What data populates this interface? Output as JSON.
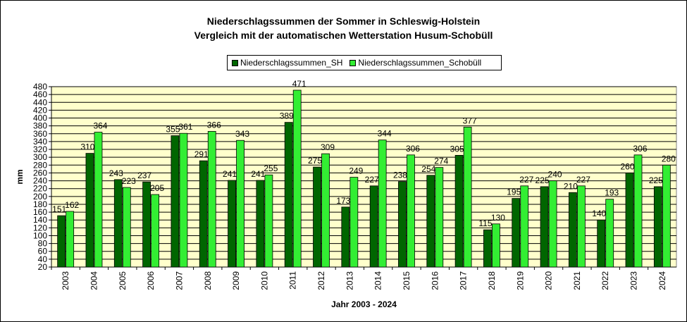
{
  "chart_data": {
    "type": "bar",
    "title": "Niederschlagssummen der Sommer in Schleswig-Holstein",
    "subtitle": "Vergleich mit der automatischen Wetterstation Husum-Schobüll",
    "xlabel": "Jahr 2003 - 2024",
    "ylabel": "mm",
    "ylim": [
      20,
      480
    ],
    "yticks": [
      20,
      40,
      60,
      80,
      100,
      120,
      140,
      160,
      180,
      200,
      220,
      240,
      260,
      280,
      300,
      320,
      340,
      360,
      380,
      400,
      420,
      440,
      460,
      480
    ],
    "grid": true,
    "legend_position": "top",
    "categories": [
      "2003",
      "2004",
      "2005",
      "2006",
      "2007",
      "2008",
      "2009",
      "2010",
      "2011",
      "2012",
      "2013",
      "2014",
      "2015",
      "2016",
      "2017",
      "2018",
      "2019",
      "2020",
      "2021",
      "2022",
      "2023",
      "2024"
    ],
    "series": [
      {
        "name": "Niederschlagssummen_SH",
        "color": "#006600",
        "values": [
          151,
          310,
          243,
          237,
          355,
          291,
          241,
          241,
          389,
          275,
          173,
          227,
          238,
          254,
          305,
          115,
          195,
          225,
          210,
          140,
          260,
          225
        ]
      },
      {
        "name": "Niederschlagssummen_Schobüll",
        "color": "#33ee33",
        "values": [
          162,
          364,
          223,
          205,
          361,
          366,
          343,
          255,
          471,
          309,
          249,
          344,
          306,
          274,
          377,
          130,
          227,
          240,
          227,
          193,
          306,
          280
        ]
      }
    ],
    "plot_background": "#ffffcc"
  }
}
